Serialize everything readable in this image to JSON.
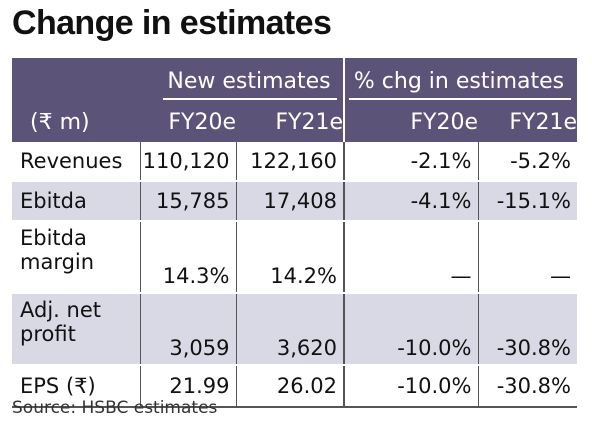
{
  "title": "Change in estimates",
  "header": {
    "group_new": "New estimates",
    "group_chg": "% chg in estimates",
    "unit": "(₹ m)",
    "cols": [
      "FY20e",
      "FY21e",
      "FY20e",
      "FY21e"
    ]
  },
  "rows": [
    {
      "label": "Revenues",
      "values": [
        "110,120",
        "122,160",
        "-2.1%",
        "-5.2%"
      ]
    },
    {
      "label": "Ebitda",
      "values": [
        "15,785",
        "17,408",
        "-4.1%",
        "-15.1%"
      ]
    },
    {
      "label_line1": "Ebitda",
      "label_line2": "margin",
      "values": [
        "14.3%",
        "14.2%",
        "—",
        "—"
      ]
    },
    {
      "label_line1": "Adj. net",
      "label_line2": "profit",
      "values": [
        "3,059",
        "3,620",
        "-10.0%",
        "-30.8%"
      ]
    },
    {
      "label": "EPS (₹)",
      "values": [
        "21.99",
        "26.02",
        "-10.0%",
        "-30.8%"
      ]
    }
  ],
  "source": "Source: HSBC estimates",
  "colors": {
    "header_bg": "#5c5478",
    "shaded_row": "#d9d9e6"
  }
}
